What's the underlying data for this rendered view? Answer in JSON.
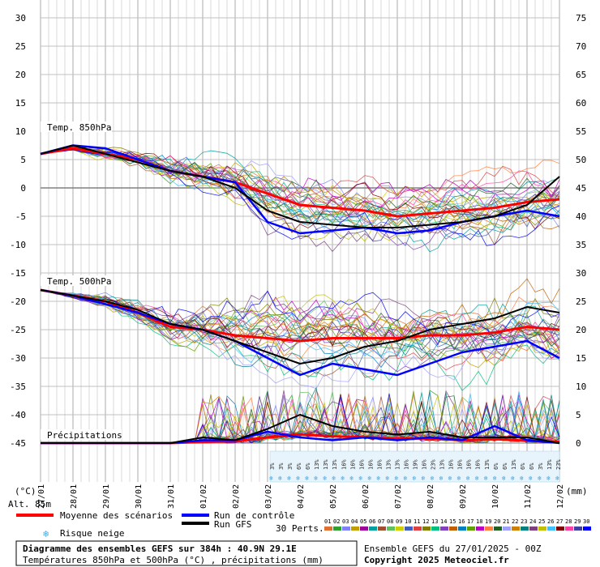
{
  "labels": {
    "temp850": "Temp. 850hPa",
    "temp500": "Temp. 500hPa",
    "precip": "Précipitations",
    "left_unit": "(°C)",
    "right_unit": "(mm)",
    "alt": "Alt. 85m"
  },
  "legend": {
    "mean": "Moyenne des scénarios",
    "control": "Run de contrôle",
    "gfs": "Run GFS",
    "snow": "Risque neige",
    "perts": "30 Perts."
  },
  "footer": {
    "title": "Diagramme des ensembles GEFS sur 384h : 40.9N 29.1E",
    "subtitle": "Températures 850hPa et 500hPa (°C) , précipitations (mm)",
    "run": "Ensemble GEFS du 27/01/2025 - 00Z",
    "copyright": "Copyright 2025 Meteociel.fr"
  },
  "colors": {
    "mean": "#ff0000",
    "control": "#0000ff",
    "gfs": "#000000",
    "grid": "#c0c0c0",
    "snow_icon": "#4aa8e0"
  },
  "snow_percent": [
    "3%",
    "3%",
    "3%",
    "6%",
    "6%",
    "13%",
    "13%",
    "13%",
    "16%",
    "16%",
    "16%",
    "16%",
    "16%",
    "13%",
    "13%",
    "16%",
    "19%",
    "16%",
    "23%",
    "13%",
    "16%",
    "16%",
    "16%",
    "16%",
    "13%",
    "6%",
    "6%",
    "13%",
    "6%",
    "6%",
    "3%",
    "13%",
    "23%"
  ],
  "pert_numbers": [
    "01",
    "02",
    "03",
    "04",
    "05",
    "06",
    "07",
    "08",
    "09",
    "10",
    "11",
    "12",
    "13",
    "14",
    "15",
    "16",
    "17",
    "18",
    "19",
    "20",
    "21",
    "22",
    "23",
    "24",
    "25",
    "26",
    "27",
    "28",
    "29",
    "30"
  ],
  "pert_colors": [
    "#e07030",
    "#30a030",
    "#8080ff",
    "#c0a000",
    "#a000a0",
    "#00a0a0",
    "#a05030",
    "#60c060",
    "#d0d000",
    "#4060c0",
    "#e04040",
    "#808000",
    "#00c080",
    "#8040c0",
    "#c06000",
    "#0080c0",
    "#60a000",
    "#c000c0",
    "#ff8040",
    "#206020",
    "#a0a0ff",
    "#d08000",
    "#008080",
    "#804080",
    "#c0c000",
    "#40c0ff",
    "#800000",
    "#ff40a0",
    "#4040a0",
    "#0000ff"
  ],
  "chart_data": {
    "type": "line",
    "x": [
      "27/01",
      "28/01",
      "29/01",
      "30/01",
      "31/01",
      "01/02",
      "02/02",
      "03/02",
      "04/02",
      "05/02",
      "06/02",
      "07/02",
      "08/02",
      "09/02",
      "10/02",
      "11/02",
      "12/02"
    ],
    "y_left_ticks": [
      30,
      25,
      20,
      15,
      10,
      5,
      0,
      -5,
      -10,
      -15,
      -20,
      -25,
      -30,
      -35,
      -40,
      -45
    ],
    "y_right_ticks": [
      75,
      70,
      65,
      60,
      55,
      50,
      45,
      40,
      35,
      30,
      25,
      20,
      15,
      10,
      5,
      0
    ],
    "ylim_left": [
      -45,
      30
    ],
    "ylim_right": [
      0,
      75
    ],
    "xlabel": "",
    "ylabel": "(°C)",
    "ylabel_right": "(mm)",
    "grid": true,
    "series": [
      {
        "name": "Moyenne des scénarios",
        "panel": "Temp. 850hPa",
        "values": [
          6,
          7,
          6,
          5,
          3,
          2,
          1,
          -1,
          -3,
          -3.5,
          -4,
          -5,
          -4.5,
          -4,
          -3.5,
          -2.5,
          -2
        ]
      },
      {
        "name": "Run de contrôle",
        "panel": "Temp. 850hPa",
        "values": [
          6,
          7.5,
          7,
          5,
          3,
          2,
          1,
          -6,
          -8,
          -7.5,
          -7,
          -8,
          -7.5,
          -6,
          -5,
          -4,
          -5
        ]
      },
      {
        "name": "Run GFS",
        "panel": "Temp. 850hPa",
        "values": [
          6,
          7.5,
          6,
          4.5,
          3,
          2,
          0,
          -4,
          -6,
          -6.5,
          -7,
          -7,
          -6.5,
          -6,
          -5,
          -3,
          2
        ]
      },
      {
        "name": "Moyenne des scénarios",
        "panel": "Temp. 500hPa",
        "values": [
          -18,
          -19,
          -20,
          -22,
          -24.5,
          -25,
          -26,
          -26.5,
          -27,
          -26.5,
          -26.5,
          -26.5,
          -26,
          -26,
          -25.5,
          -24.5,
          -25
        ]
      },
      {
        "name": "Run de contrôle",
        "panel": "Temp. 500hPa",
        "values": [
          -18,
          -19,
          -20.5,
          -22,
          -24,
          -25,
          -27,
          -30,
          -33,
          -31,
          -32,
          -33,
          -31,
          -29,
          -28,
          -27,
          -30
        ]
      },
      {
        "name": "Run GFS",
        "panel": "Temp. 500hPa",
        "values": [
          -18,
          -19,
          -20,
          -21.5,
          -24,
          -25,
          -27,
          -29,
          -31,
          -30,
          -28,
          -27,
          -25,
          -24,
          -23,
          -21,
          -22
        ]
      },
      {
        "name": "Moyenne des scénarios",
        "panel": "Précipitations",
        "values": [
          0,
          0,
          0,
          0,
          0,
          0.2,
          0.3,
          1,
          1.5,
          1.2,
          1,
          0.8,
          0.8,
          0.5,
          0.7,
          0.4,
          0.2
        ]
      },
      {
        "name": "Run de contrôle",
        "panel": "Précipitations",
        "values": [
          0,
          0,
          0,
          0,
          0,
          0.5,
          0.5,
          2,
          1,
          0.5,
          1,
          0.5,
          1,
          0.5,
          3,
          0.5,
          0
        ]
      },
      {
        "name": "Run GFS",
        "panel": "Précipitations",
        "values": [
          0,
          0,
          0,
          0,
          0,
          1,
          0.5,
          2.5,
          5,
          3,
          2,
          1.5,
          2,
          1,
          1,
          1,
          0
        ]
      }
    ]
  }
}
